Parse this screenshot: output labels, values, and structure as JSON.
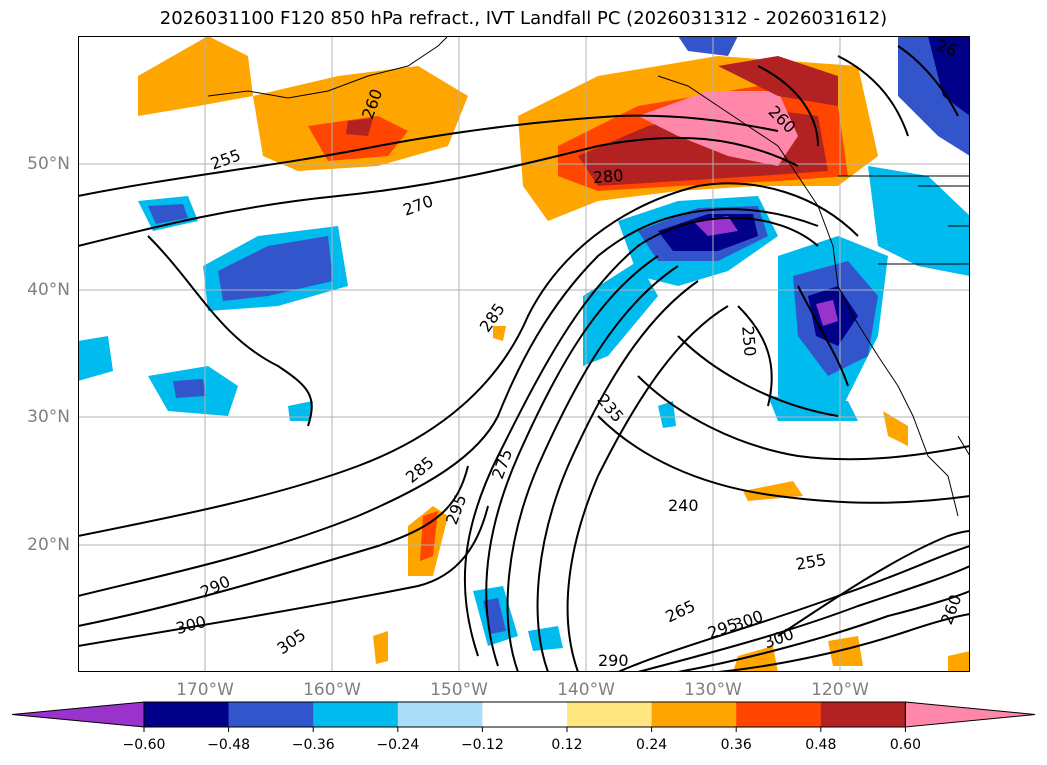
{
  "title": "2026031100 F120 850 hPa refract., IVT Landfall PC (2026031312 - 2026031612)",
  "map": {
    "lat_labels": [
      "50°N",
      "40°N",
      "30°N",
      "20°N"
    ],
    "lon_labels": [
      "170°W",
      "160°W",
      "150°W",
      "140°W",
      "130°W",
      "120°W"
    ],
    "contour_labels": [
      "255",
      "260",
      "270",
      "280",
      "260",
      "285",
      "250",
      "235",
      "240",
      "285",
      "275",
      "295",
      "290",
      "300",
      "305",
      "265",
      "295",
      "300",
      "300",
      "290",
      "255",
      "260",
      "26"
    ]
  },
  "colorbar": {
    "ticks": [
      "−0.60",
      "−0.48",
      "−0.36",
      "−0.24",
      "−0.12",
      "0.12",
      "0.24",
      "0.36",
      "0.48",
      "0.60"
    ],
    "colors": [
      "#9933cc",
      "#000088",
      "#3355cc",
      "#00bbee",
      "#aaddf8",
      "#ffffff",
      "#ffe680",
      "#ffa500",
      "#ff4500",
      "#b22222",
      "#ff88aa",
      "#ff88aa"
    ],
    "extend": "both"
  }
}
